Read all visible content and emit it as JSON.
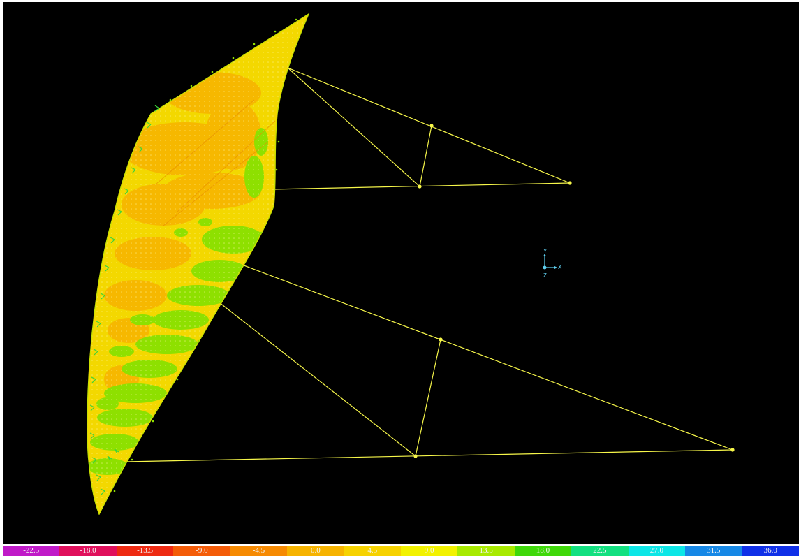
{
  "viewport": {
    "background": "#000000",
    "model_colors": {
      "wall_base": "#f3d800",
      "wall_orange": "#f6b800",
      "wall_green": "#8ee000",
      "cable": "#f7f74a",
      "support": "#3bd43b"
    }
  },
  "axis_triad": {
    "y": "Y",
    "x": "X",
    "z": "Z",
    "color": "#5fd0f0"
  },
  "legend": {
    "segments": [
      {
        "label": "-22.5",
        "color": "#c01ac8"
      },
      {
        "label": "-18.0",
        "color": "#e0105c"
      },
      {
        "label": "-13.5",
        "color": "#ee2a12"
      },
      {
        "label": "-9.0",
        "color": "#f45c08"
      },
      {
        "label": "-4.5",
        "color": "#f68a02"
      },
      {
        "label": "0.0",
        "color": "#f6b300"
      },
      {
        "label": "4.5",
        "color": "#f6d200"
      },
      {
        "label": "9.0",
        "color": "#f2f200"
      },
      {
        "label": "13.5",
        "color": "#a8ea00"
      },
      {
        "label": "18.0",
        "color": "#3fd80a"
      },
      {
        "label": "22.5",
        "color": "#12e080"
      },
      {
        "label": "27.0",
        "color": "#0ce6e6"
      },
      {
        "label": "31.5",
        "color": "#1688e6"
      },
      {
        "label": "36.0",
        "color": "#1030e8"
      }
    ]
  }
}
